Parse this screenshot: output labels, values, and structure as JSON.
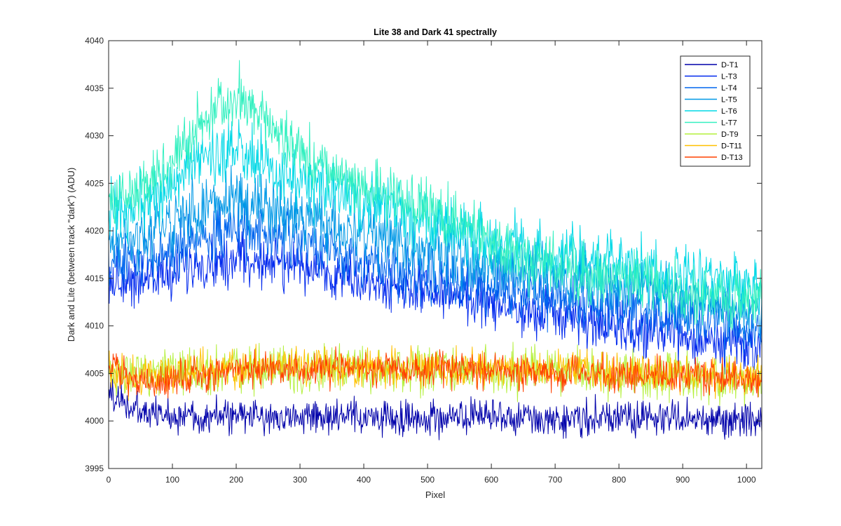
{
  "chart_data": {
    "type": "line",
    "title": "Lite 38 and Dark 41 spectrally",
    "xlabel": "Pixel",
    "ylabel": "Dark and Lite (between track \"dark\") (ADU)",
    "xlim": [
      0,
      1024
    ],
    "ylim": [
      3995,
      4040
    ],
    "x_ticks": [
      0,
      100,
      200,
      300,
      400,
      500,
      600,
      700,
      800,
      900,
      1000
    ],
    "y_ticks": [
      3995,
      4000,
      4005,
      4010,
      4015,
      4020,
      4025,
      4030,
      4035,
      4040
    ],
    "grid": false,
    "legend_position": "top-right",
    "x_samples": [
      0,
      50,
      100,
      150,
      200,
      250,
      300,
      350,
      400,
      450,
      500,
      550,
      600,
      650,
      700,
      750,
      800,
      850,
      900,
      950,
      1024
    ],
    "series": [
      {
        "name": "D-T1",
        "color": "#0000aa",
        "noise": 0.9,
        "mean": [
          4003,
          4000.8,
          4000.6,
          4000.5,
          4000.5,
          4000.5,
          4000.4,
          4000.4,
          4000.3,
          4000.3,
          4000.3,
          4000.3,
          4000.3,
          4000.3,
          4000.3,
          4000.3,
          4000.3,
          4000.3,
          4000.2,
          4000.2,
          4000.2
        ]
      },
      {
        "name": "L-T3",
        "color": "#0028ee",
        "noise": 1.3,
        "mean": [
          4014.5,
          4015,
          4015.5,
          4016.5,
          4017,
          4016.8,
          4016.2,
          4015.5,
          4014.8,
          4014,
          4013.5,
          4013,
          4012.3,
          4011.7,
          4011,
          4010.3,
          4009.7,
          4009.2,
          4008.8,
          4008.3,
          4007.5
        ]
      },
      {
        "name": "L-T4",
        "color": "#0066ee",
        "noise": 1.4,
        "mean": [
          4016.5,
          4017,
          4018,
          4019.3,
          4020.3,
          4019.5,
          4018.8,
          4017.8,
          4016.8,
          4016,
          4015.5,
          4014.8,
          4014,
          4013.5,
          4013,
          4012.3,
          4011.7,
          4011.2,
          4010.8,
          4010.2,
          4009.5
        ]
      },
      {
        "name": "L-T5",
        "color": "#0098e6",
        "noise": 1.5,
        "mean": [
          4018.5,
          4019.5,
          4021,
          4022.5,
          4023,
          4022.5,
          4021.5,
          4020.5,
          4019.5,
          4018.8,
          4018,
          4017.3,
          4016.5,
          4016,
          4015.5,
          4014.8,
          4014.2,
          4013.7,
          4013.2,
          4012.6,
          4011.8
        ]
      },
      {
        "name": "L-T6",
        "color": "#00d8e6",
        "noise": 1.6,
        "mean": [
          4021.5,
          4022.5,
          4025,
          4027.8,
          4028,
          4026.8,
          4025.3,
          4024,
          4022.8,
          4022,
          4021,
          4020,
          4019,
          4018,
          4017.5,
          4017,
          4016.4,
          4015.8,
          4015.4,
          4014.8,
          4014
        ]
      },
      {
        "name": "L-T7",
        "color": "#33f0c0",
        "noise": 1.5,
        "mean": [
          4023,
          4024,
          4027.5,
          4031.5,
          4034,
          4031.5,
          4028,
          4026,
          4024.5,
          4023.5,
          4022.5,
          4021,
          4019,
          4017,
          4016.2,
          4015.5,
          4015,
          4014.2,
          4013.7,
          4013.2,
          4012.3
        ]
      },
      {
        "name": "D-T9",
        "color": "#b4f03c",
        "noise": 1.2,
        "mean": [
          4004.5,
          4004.6,
          4005,
          4005.2,
          4005.3,
          4005.4,
          4005.5,
          4005.5,
          4005.5,
          4005.4,
          4005.4,
          4005.3,
          4005.2,
          4005.1,
          4005,
          4004.9,
          4004.8,
          4004.7,
          4004.6,
          4004.5,
          4004.3
        ]
      },
      {
        "name": "D-T11",
        "color": "#ffc000",
        "noise": 1.0,
        "mean": [
          4005,
          4004.8,
          4005,
          4005.3,
          4005.5,
          4005.6,
          4005.7,
          4005.7,
          4005.7,
          4005.6,
          4005.6,
          4005.5,
          4005.5,
          4005.4,
          4005.3,
          4005.2,
          4005.1,
          4005,
          4004.9,
          4004.8,
          4004.6
        ]
      },
      {
        "name": "D-T13",
        "color": "#ff4000",
        "noise": 0.9,
        "mean": [
          4005.5,
          4004,
          4004.5,
          4005,
          4005.2,
          4005.4,
          4005.5,
          4005.6,
          4005.6,
          4005.5,
          4005.5,
          4005.4,
          4005.3,
          4005.2,
          4005.1,
          4005,
          4004.9,
          4004.8,
          4004.7,
          4004.6,
          4004.4
        ]
      }
    ]
  }
}
